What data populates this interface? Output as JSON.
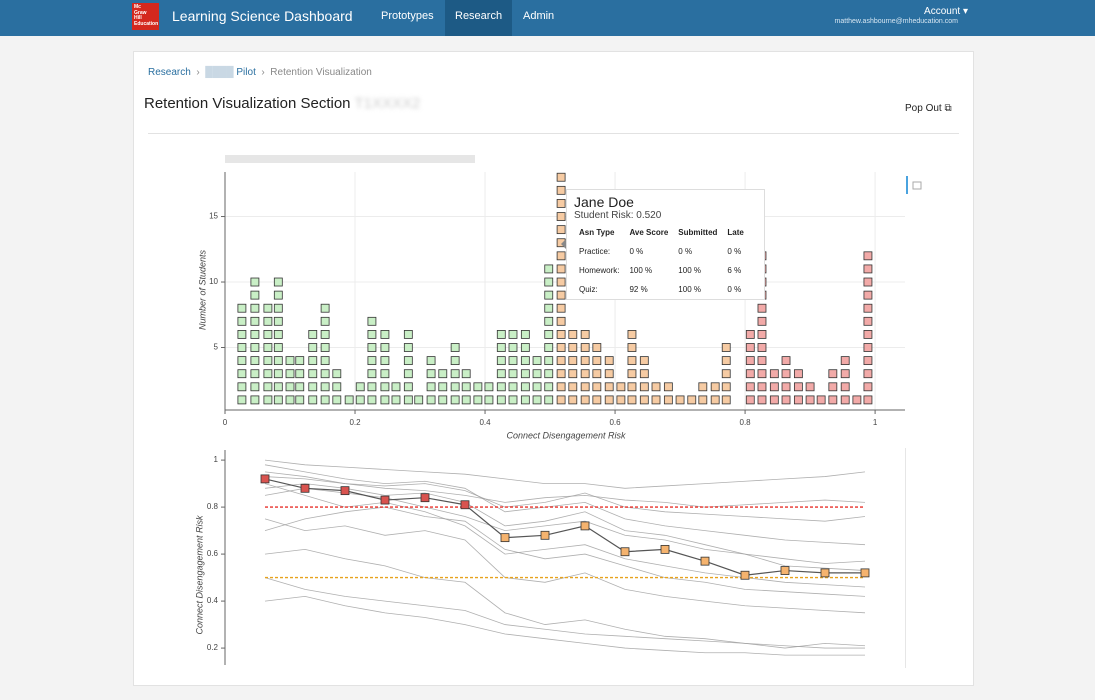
{
  "nav": {
    "logo": [
      "Mc",
      "Graw",
      "Hill",
      "Education"
    ],
    "brand": "Learning Science Dashboard",
    "links": [
      "Prototypes",
      "Research",
      "Admin"
    ],
    "account": "Account",
    "email": "matthew.ashbourne@mheducation.com"
  },
  "breadcrumb": [
    "Research",
    "Pilot",
    "Retention Visualization"
  ],
  "section_title": "Retention Visualization Section",
  "pop_out": "Pop Out",
  "tooltip": {
    "name": "Jane Doe",
    "risk": "Student Risk: 0.520",
    "header": [
      "Asn Type",
      "Ave Score",
      "Submitted",
      "Late"
    ],
    "rows": [
      [
        "Practice:",
        "0 %",
        "0 %",
        "0 %"
      ],
      [
        "Homework:",
        "100 %",
        "100 %",
        "6 %"
      ],
      [
        "Quiz:",
        "92 %",
        "100 %",
        "0 %"
      ]
    ]
  },
  "chart_data": [
    {
      "type": "dotplot",
      "xlabel": "Connect Disengagement Risk",
      "ylabel": "Number of Students",
      "xlim": [
        0,
        1.046
      ],
      "ylim": [
        0,
        18.4
      ],
      "xticks": [
        0,
        0.2,
        0.4,
        0.6,
        0.8,
        1
      ],
      "yticks": [
        5,
        10,
        15
      ],
      "grid": true,
      "series": [
        {
          "color": "#c9efc6",
          "x": [
            0.026,
            0.046,
            0.066,
            0.082,
            0.1,
            0.115,
            0.135,
            0.154,
            0.172,
            0.191,
            0.208,
            0.226,
            0.246,
            0.263,
            0.282,
            0.298,
            0.317,
            0.335,
            0.354,
            0.371,
            0.389,
            0.406,
            0.425,
            0.443,
            0.462,
            0.48,
            0.498
          ],
          "values": [
            8,
            10,
            8,
            10,
            4,
            4,
            6,
            8,
            3,
            1,
            2,
            7,
            6,
            2,
            6,
            1,
            4,
            3,
            5,
            3,
            2,
            2,
            6,
            6,
            6,
            4,
            11
          ]
        },
        {
          "color": "#f6cba3",
          "x": [
            0.517,
            0.535,
            0.554,
            0.572,
            0.591,
            0.609,
            0.626,
            0.645,
            0.663,
            0.682,
            0.7,
            0.718,
            0.735,
            0.754,
            0.771
          ],
          "values": [
            18,
            6,
            6,
            5,
            4,
            2,
            6,
            4,
            2,
            2,
            1,
            1,
            2,
            2,
            5
          ]
        },
        {
          "color": "#f2aaa8",
          "x": [
            0.808,
            0.826,
            0.845,
            0.863,
            0.882,
            0.9,
            0.917,
            0.935,
            0.954,
            0.972,
            0.989
          ],
          "values": [
            6,
            12,
            3,
            4,
            3,
            2,
            1,
            3,
            4,
            1,
            12
          ]
        }
      ]
    },
    {
      "type": "line",
      "ylabel": "Connect Disengagement Risk",
      "ylim": [
        0.128,
        1.043
      ],
      "yticks": [
        0.2,
        0.4,
        0.6,
        0.8,
        1
      ],
      "grid": false,
      "background_series": {
        "color": "#9b9b9b",
        "values": [
          [
            0.95,
            0.93,
            0.9,
            0.88,
            0.87,
            0.85,
            0.82,
            0.84,
            0.85,
            0.83,
            0.82,
            0.8,
            0.81,
            0.82,
            0.83,
            0.82
          ],
          [
            0.9,
            0.85,
            0.8,
            0.82,
            0.78,
            0.72,
            0.6,
            0.62,
            0.64,
            0.58,
            0.55,
            0.52,
            0.5,
            0.48,
            0.47,
            0.46
          ],
          [
            0.85,
            0.88,
            0.86,
            0.84,
            0.8,
            0.76,
            0.7,
            0.72,
            0.74,
            0.68,
            0.66,
            0.62,
            0.6,
            0.58,
            0.56,
            0.57
          ],
          [
            0.75,
            0.7,
            0.72,
            0.68,
            0.7,
            0.66,
            0.5,
            0.48,
            0.52,
            0.45,
            0.42,
            0.4,
            0.38,
            0.37,
            0.36,
            0.35
          ],
          [
            0.6,
            0.62,
            0.58,
            0.55,
            0.5,
            0.48,
            0.35,
            0.3,
            0.32,
            0.28,
            0.25,
            0.24,
            0.22,
            0.2,
            0.22,
            0.21
          ],
          [
            1,
            0.98,
            0.97,
            0.96,
            0.95,
            0.94,
            0.92,
            0.9,
            0.9,
            0.88,
            0.89,
            0.9,
            0.91,
            0.92,
            0.93,
            0.95
          ],
          [
            0.98,
            0.95,
            0.92,
            0.9,
            0.91,
            0.88,
            0.78,
            0.8,
            0.82,
            0.75,
            0.72,
            0.7,
            0.68,
            0.66,
            0.65,
            0.64
          ],
          [
            0.5,
            0.45,
            0.42,
            0.4,
            0.38,
            0.36,
            0.3,
            0.28,
            0.26,
            0.25,
            0.24,
            0.23,
            0.22,
            0.21,
            0.2,
            0.2
          ],
          [
            0.88,
            0.9,
            0.88,
            0.85,
            0.86,
            0.82,
            0.72,
            0.74,
            0.78,
            0.7,
            0.68,
            0.64,
            0.6,
            0.55,
            0.54,
            0.53
          ],
          [
            0.7,
            0.75,
            0.78,
            0.8,
            0.76,
            0.74,
            0.62,
            0.58,
            0.6,
            0.55,
            0.5,
            0.48,
            0.45,
            0.44,
            0.43,
            0.42
          ],
          [
            0.93,
            0.92,
            0.9,
            0.89,
            0.9,
            0.87,
            0.8,
            0.82,
            0.86,
            0.8,
            0.78,
            0.77,
            0.76,
            0.75,
            0.74,
            0.76
          ],
          [
            0.4,
            0.42,
            0.38,
            0.35,
            0.33,
            0.3,
            0.26,
            0.24,
            0.22,
            0.2,
            0.19,
            0.18,
            0.18,
            0.17,
            0.17,
            0.17
          ]
        ]
      },
      "series": [
        {
          "color": "#555555",
          "values": [
            0.92,
            0.88,
            0.87,
            0.83,
            0.84,
            0.81,
            0.67,
            0.68,
            0.72,
            0.61,
            0.62,
            0.57,
            0.51,
            0.53,
            0.52,
            0.52
          ],
          "point_colors": [
            "#d9534f",
            "#d9534f",
            "#d9534f",
            "#d9534f",
            "#d9534f",
            "#d9534f",
            "#f5b36e",
            "#f5b36e",
            "#f5b36e",
            "#f5b36e",
            "#f5b36e",
            "#f5b36e",
            "#f5b36e",
            "#f5b36e",
            "#f5b36e",
            "#f5b36e"
          ]
        }
      ],
      "hlines": [
        {
          "value": 0.8,
          "color": "#e8302a"
        },
        {
          "value": 0.5,
          "color": "#e8a21c"
        }
      ]
    }
  ]
}
